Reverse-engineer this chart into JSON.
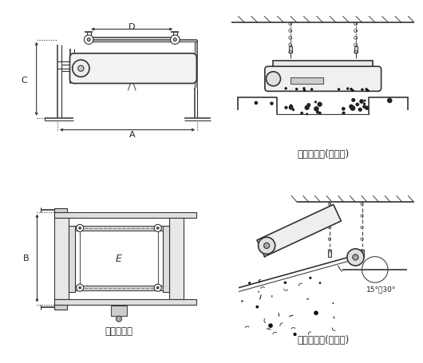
{
  "bg_color": "#ffffff",
  "lc": "#4a4a4a",
  "lc_dark": "#222222",
  "label_A": "A",
  "label_B": "B",
  "label_C": "C",
  "label_D": "D",
  "label_E": "E",
  "caption_bottom_left": "外形尺寸图",
  "caption_top_right": "安装示意图(水平式)",
  "caption_bottom_right": "安装示意图(倾斜式)",
  "angle_label": "15°～30°"
}
